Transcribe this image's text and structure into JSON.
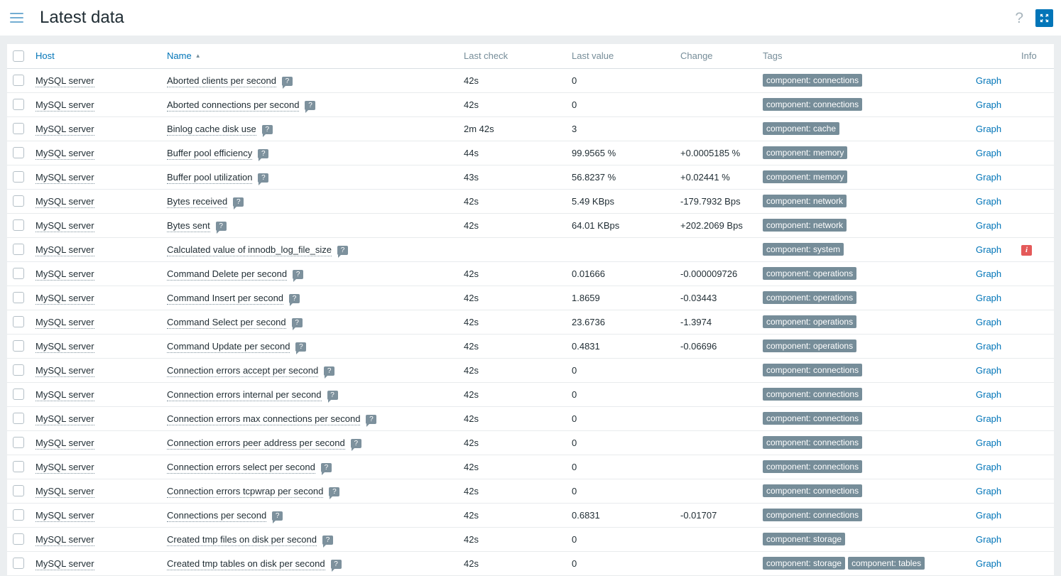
{
  "header": {
    "title": "Latest data",
    "help_label": "?",
    "menu_icon": "hamburger-menu",
    "kiosk_icon": "fullscreen-arrows"
  },
  "colors": {
    "accent_blue": "#0275b8",
    "tag_badge": "#768d99",
    "error_red": "#e45959",
    "page_background": "#ebeef0"
  },
  "table": {
    "columns": {
      "host": "Host",
      "name": "Name",
      "last_check": "Last check",
      "last_value": "Last value",
      "change": "Change",
      "tags": "Tags",
      "info": "Info"
    },
    "sort": {
      "column": "Name",
      "direction": "asc",
      "arrow": "▲"
    },
    "graph_label": "Graph",
    "rows": [
      {
        "host": "MySQL server",
        "name": "Aborted clients per second",
        "last_check": "42s",
        "last_value": "0",
        "change": "",
        "tags": [
          "component: connections"
        ],
        "info": ""
      },
      {
        "host": "MySQL server",
        "name": "Aborted connections per second",
        "last_check": "42s",
        "last_value": "0",
        "change": "",
        "tags": [
          "component: connections"
        ],
        "info": ""
      },
      {
        "host": "MySQL server",
        "name": "Binlog cache disk use",
        "last_check": "2m 42s",
        "last_value": "3",
        "change": "",
        "tags": [
          "component: cache"
        ],
        "info": ""
      },
      {
        "host": "MySQL server",
        "name": "Buffer pool efficiency",
        "last_check": "44s",
        "last_value": "99.9565 %",
        "change": "+0.0005185 %",
        "tags": [
          "component: memory"
        ],
        "info": ""
      },
      {
        "host": "MySQL server",
        "name": "Buffer pool utilization",
        "last_check": "43s",
        "last_value": "56.8237 %",
        "change": "+0.02441 %",
        "tags": [
          "component: memory"
        ],
        "info": ""
      },
      {
        "host": "MySQL server",
        "name": "Bytes received",
        "last_check": "42s",
        "last_value": "5.49 KBps",
        "change": "-179.7932 Bps",
        "tags": [
          "component: network"
        ],
        "info": ""
      },
      {
        "host": "MySQL server",
        "name": "Bytes sent",
        "last_check": "42s",
        "last_value": "64.01 KBps",
        "change": "+202.2069 Bps",
        "tags": [
          "component: network"
        ],
        "info": ""
      },
      {
        "host": "MySQL server",
        "name": "Calculated value of innodb_log_file_size",
        "last_check": "",
        "last_value": "",
        "change": "",
        "tags": [
          "component: system"
        ],
        "info": "error"
      },
      {
        "host": "MySQL server",
        "name": "Command Delete per second",
        "last_check": "42s",
        "last_value": "0.01666",
        "change": "-0.000009726",
        "tags": [
          "component: operations"
        ],
        "info": ""
      },
      {
        "host": "MySQL server",
        "name": "Command Insert per second",
        "last_check": "42s",
        "last_value": "1.8659",
        "change": "-0.03443",
        "tags": [
          "component: operations"
        ],
        "info": ""
      },
      {
        "host": "MySQL server",
        "name": "Command Select per second",
        "last_check": "42s",
        "last_value": "23.6736",
        "change": "-1.3974",
        "tags": [
          "component: operations"
        ],
        "info": ""
      },
      {
        "host": "MySQL server",
        "name": "Command Update per second",
        "last_check": "42s",
        "last_value": "0.4831",
        "change": "-0.06696",
        "tags": [
          "component: operations"
        ],
        "info": ""
      },
      {
        "host": "MySQL server",
        "name": "Connection errors accept per second",
        "last_check": "42s",
        "last_value": "0",
        "change": "",
        "tags": [
          "component: connections"
        ],
        "info": ""
      },
      {
        "host": "MySQL server",
        "name": "Connection errors internal per second",
        "last_check": "42s",
        "last_value": "0",
        "change": "",
        "tags": [
          "component: connections"
        ],
        "info": ""
      },
      {
        "host": "MySQL server",
        "name": "Connection errors max connections per second",
        "last_check": "42s",
        "last_value": "0",
        "change": "",
        "tags": [
          "component: connections"
        ],
        "info": ""
      },
      {
        "host": "MySQL server",
        "name": "Connection errors peer address per second",
        "last_check": "42s",
        "last_value": "0",
        "change": "",
        "tags": [
          "component: connections"
        ],
        "info": ""
      },
      {
        "host": "MySQL server",
        "name": "Connection errors select per second",
        "last_check": "42s",
        "last_value": "0",
        "change": "",
        "tags": [
          "component: connections"
        ],
        "info": ""
      },
      {
        "host": "MySQL server",
        "name": "Connection errors tcpwrap per second",
        "last_check": "42s",
        "last_value": "0",
        "change": "",
        "tags": [
          "component: connections"
        ],
        "info": ""
      },
      {
        "host": "MySQL server",
        "name": "Connections per second",
        "last_check": "42s",
        "last_value": "0.6831",
        "change": "-0.01707",
        "tags": [
          "component: connections"
        ],
        "info": ""
      },
      {
        "host": "MySQL server",
        "name": "Created tmp files on disk per second",
        "last_check": "42s",
        "last_value": "0",
        "change": "",
        "tags": [
          "component: storage"
        ],
        "info": ""
      },
      {
        "host": "MySQL server",
        "name": "Created tmp tables on disk per second",
        "last_check": "42s",
        "last_value": "0",
        "change": "",
        "tags": [
          "component: storage",
          "component: tables"
        ],
        "info": ""
      }
    ]
  }
}
